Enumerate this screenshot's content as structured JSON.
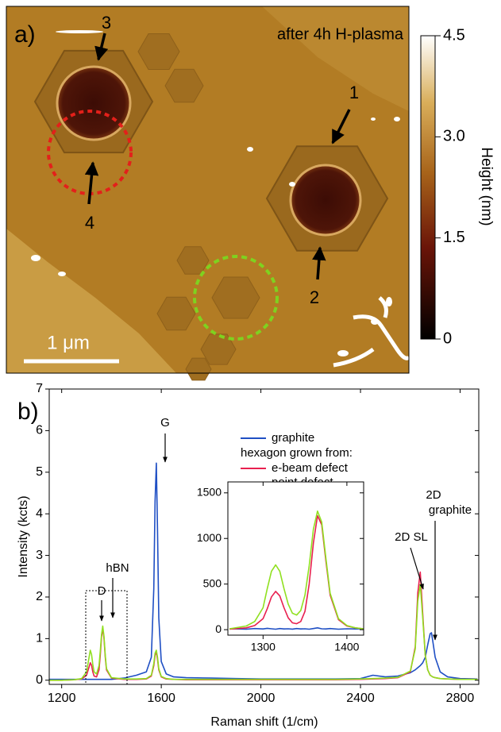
{
  "panel_a": {
    "label": "a)",
    "title": "after 4h H-plasma",
    "markers": [
      "1",
      "2",
      "3",
      "4"
    ],
    "scale_bar": "1 μm",
    "colorbar": {
      "label": "Height (nm)",
      "lim": [
        0,
        4.5
      ],
      "ticks": [
        0,
        1.5,
        {
          "value": 3,
          "label": "3.0"
        },
        4.5
      ]
    }
  },
  "chart_data": [
    {
      "type": "line",
      "panel_label": "b)",
      "xlabel": "Raman shift (1/cm)",
      "ylabel": "Intensity (kcts)",
      "xlim": [
        1150,
        2875
      ],
      "ylim": [
        -0.1,
        7
      ],
      "xticks": [
        1200,
        1600,
        2000,
        2400,
        2800
      ],
      "yticks": [
        0,
        1,
        2,
        3,
        4,
        5,
        6,
        7
      ],
      "legend_subtitle": "hexagon grown from:",
      "annotations": [
        "G",
        "D",
        "hBN",
        "2D SL",
        "2D",
        "graphite"
      ],
      "x": [
        1150,
        1200,
        1250,
        1280,
        1300,
        1310,
        1315,
        1320,
        1325,
        1330,
        1340,
        1350,
        1355,
        1360,
        1365,
        1370,
        1375,
        1380,
        1400,
        1450,
        1500,
        1540,
        1560,
        1570,
        1575,
        1580,
        1585,
        1590,
        1600,
        1620,
        1650,
        1700,
        1800,
        1900,
        2000,
        2100,
        2200,
        2300,
        2400,
        2450,
        2500,
        2550,
        2600,
        2620,
        2630,
        2640,
        2650,
        2660,
        2670,
        2680,
        2685,
        2690,
        2700,
        2720,
        2750,
        2800,
        2870
      ],
      "series": [
        {
          "name": "graphite",
          "color": "#1f4fc4",
          "values": [
            0.02,
            0.02,
            0.02,
            0.02,
            0.02,
            0.02,
            0.02,
            0.02,
            0.02,
            0.02,
            0.02,
            0.02,
            0.02,
            0.02,
            0.02,
            0.02,
            0.02,
            0.02,
            0.02,
            0.05,
            0.12,
            0.2,
            0.55,
            2.2,
            4.3,
            5.22,
            3.6,
            1.5,
            0.45,
            0.15,
            0.08,
            0.06,
            0.05,
            0.04,
            0.03,
            0.03,
            0.03,
            0.03,
            0.04,
            0.12,
            0.08,
            0.1,
            0.18,
            0.25,
            0.3,
            0.35,
            0.42,
            0.55,
            0.85,
            1.12,
            1.14,
            0.95,
            0.55,
            0.2,
            0.08,
            0.04,
            0.03
          ]
        },
        {
          "name": "e-beam defect",
          "color": "#e8204f",
          "values": [
            0,
            0,
            0.01,
            0.03,
            0.12,
            0.32,
            0.42,
            0.36,
            0.2,
            0.1,
            0.08,
            0.25,
            0.6,
            1.05,
            1.25,
            1.0,
            0.55,
            0.25,
            0.05,
            0.02,
            0.02,
            0.03,
            0.1,
            0.35,
            0.6,
            0.68,
            0.5,
            0.25,
            0.08,
            0.03,
            0.02,
            0.01,
            0.01,
            0.01,
            0.01,
            0.01,
            0.01,
            0.01,
            0.02,
            0.03,
            0.04,
            0.06,
            0.2,
            0.8,
            2.1,
            2.6,
            1.6,
            0.6,
            0.25,
            0.12,
            0.1,
            0.08,
            0.06,
            0.04,
            0.03,
            0.02,
            0.02
          ]
        },
        {
          "name": "point defect",
          "color": "#90e020",
          "values": [
            0,
            0,
            0.01,
            0.04,
            0.2,
            0.55,
            0.72,
            0.62,
            0.38,
            0.2,
            0.15,
            0.35,
            0.7,
            1.1,
            1.3,
            1.05,
            0.6,
            0.28,
            0.06,
            0.03,
            0.03,
            0.04,
            0.12,
            0.4,
            0.65,
            0.72,
            0.55,
            0.28,
            0.09,
            0.04,
            0.02,
            0.02,
            0.02,
            0.02,
            0.02,
            0.02,
            0.02,
            0.02,
            0.03,
            0.04,
            0.05,
            0.07,
            0.22,
            0.75,
            1.9,
            2.3,
            1.5,
            0.6,
            0.25,
            0.12,
            0.1,
            0.08,
            0.06,
            0.04,
            0.03,
            0.02,
            0.02
          ]
        }
      ]
    },
    {
      "type": "line",
      "xlim": [
        1258,
        1420
      ],
      "ylim": [
        -60,
        1620
      ],
      "xticks": [
        1300,
        1400
      ],
      "yticks": [
        0,
        500,
        1000,
        1500
      ],
      "x": [
        1260,
        1280,
        1290,
        1300,
        1305,
        1310,
        1315,
        1320,
        1325,
        1330,
        1335,
        1340,
        1345,
        1350,
        1355,
        1360,
        1365,
        1370,
        1375,
        1380,
        1390,
        1400,
        1410,
        1420
      ],
      "series": [
        {
          "color": "#1f4fc4",
          "values": [
            10,
            5,
            12,
            8,
            15,
            10,
            5,
            12,
            8,
            10,
            6,
            12,
            8,
            10,
            5,
            12,
            20,
            10,
            8,
            12,
            5,
            10,
            8,
            10
          ]
        },
        {
          "color": "#e8204f",
          "values": [
            5,
            20,
            45,
            120,
            230,
            360,
            420,
            370,
            240,
            130,
            75,
            65,
            90,
            200,
            500,
            950,
            1250,
            1150,
            750,
            380,
            110,
            40,
            20,
            10
          ]
        },
        {
          "color": "#90e020",
          "values": [
            10,
            40,
            90,
            240,
            450,
            640,
            710,
            640,
            450,
            280,
            180,
            160,
            210,
            380,
            700,
            1100,
            1300,
            1180,
            780,
            400,
            120,
            45,
            20,
            10
          ]
        }
      ]
    }
  ]
}
